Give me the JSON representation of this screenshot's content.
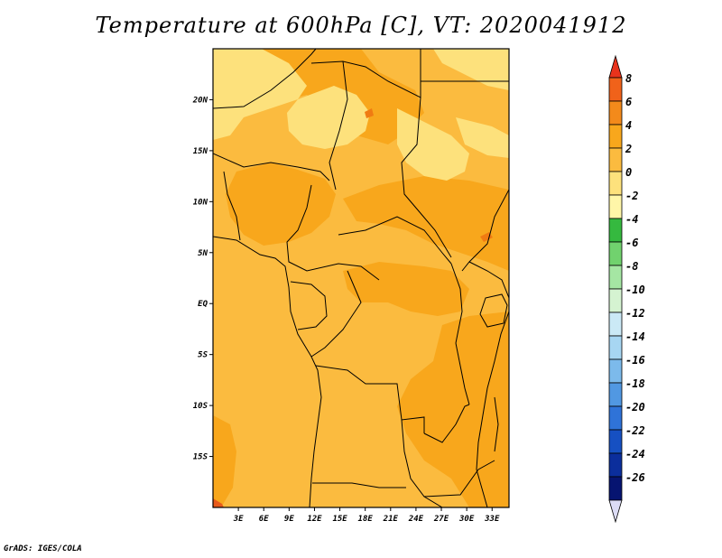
{
  "title": "Temperature at 600hPa [C], VT: 2020041912",
  "credit": "GrADS: IGES/COLA",
  "map": {
    "lat_range": [
      -20,
      25
    ],
    "lon_range": [
      0,
      35
    ],
    "lat_ticks": [
      {
        "value": 20,
        "label": "20N"
      },
      {
        "value": 15,
        "label": "15N"
      },
      {
        "value": 10,
        "label": "10N"
      },
      {
        "value": 5,
        "label": "5N"
      },
      {
        "value": 0,
        "label": "EQ"
      },
      {
        "value": -5,
        "label": "5S"
      },
      {
        "value": -10,
        "label": "10S"
      },
      {
        "value": -15,
        "label": "15S"
      }
    ],
    "lon_ticks": [
      {
        "value": 3,
        "label": "3E"
      },
      {
        "value": 6,
        "label": "6E"
      },
      {
        "value": 9,
        "label": "9E"
      },
      {
        "value": 12,
        "label": "12E"
      },
      {
        "value": 15,
        "label": "15E"
      },
      {
        "value": 18,
        "label": "18E"
      },
      {
        "value": 21,
        "label": "21E"
      },
      {
        "value": 24,
        "label": "24E"
      },
      {
        "value": 27,
        "label": "27E"
      },
      {
        "value": 30,
        "label": "30E"
      },
      {
        "value": 33,
        "label": "33E"
      }
    ],
    "colors": {
      "band_0_2": "#fbbb3f",
      "band_2_4": "#f8a71c",
      "band_neg2_0": "#fde17c",
      "band_4_6": "#f07b12",
      "band_6_8": "#e85a1a",
      "border": "#000000"
    }
  },
  "colorbar": {
    "tick_labels": [
      "8",
      "6",
      "4",
      "2",
      "0",
      "-2",
      "-4",
      "-6",
      "-8",
      "-10",
      "-12",
      "-14",
      "-16",
      "-18",
      "-20",
      "-22",
      "-24",
      "-26"
    ],
    "colors": [
      "#e8331c",
      "#f0621a",
      "#f38a1b",
      "#f8a71c",
      "#fbbb3f",
      "#fde17c",
      "#fff6a8",
      "#35b93f",
      "#71d26e",
      "#a5e6a3",
      "#d5f3d1",
      "#cbe9f6",
      "#a7d6f2",
      "#7cbaeb",
      "#5198e2",
      "#2f73d8",
      "#1650c2",
      "#0b2e9c",
      "#061471",
      "#dcdcf5"
    ]
  }
}
